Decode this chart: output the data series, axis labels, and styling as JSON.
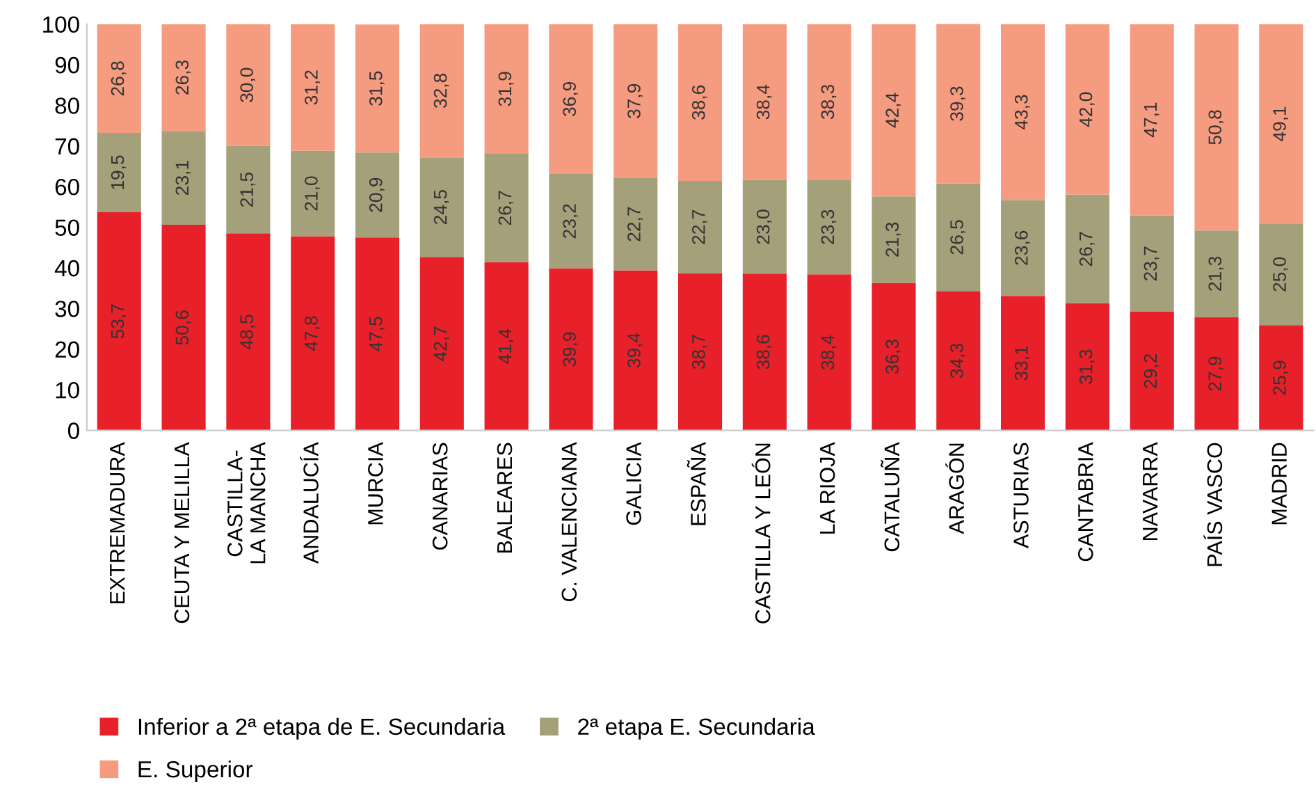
{
  "chart_data": {
    "type": "bar",
    "stacked": true,
    "categories": [
      "EXTREMADURA",
      "CEUTA Y MELILLA",
      "CASTILLA-\nLA MANCHA",
      "ANDALUCÍA",
      "MURCIA",
      "CANARIAS",
      "BALEARES",
      "C. VALENCIANA",
      "GALICIA",
      "ESPAÑA",
      "CASTILLA Y LEÓN",
      "LA RIOJA",
      "CATALUÑA",
      "ARAGÓN",
      "ASTURIAS",
      "CANTABRIA",
      "NAVARRA",
      "PAÍS VASCO",
      "MADRID"
    ],
    "series": [
      {
        "name": "Inferior a 2ª etapa de E. Secundaria",
        "color": "#e8202a",
        "values": [
          53.7,
          50.6,
          48.5,
          47.8,
          47.5,
          42.7,
          41.4,
          39.9,
          39.4,
          38.7,
          38.6,
          38.4,
          36.3,
          34.3,
          33.1,
          31.3,
          29.2,
          27.9,
          25.9
        ],
        "value_labels": [
          "53,7",
          "50,6",
          "48,5",
          "47,8",
          "47,5",
          "42,7",
          "41,4",
          "39,9",
          "39,4",
          "38,7",
          "38,6",
          "38,4",
          "36,3",
          "34,3",
          "33,1",
          "31,3",
          "29,2",
          "27,9",
          "25,9"
        ]
      },
      {
        "name": "2ª etapa E. Secundaria",
        "color": "#a3a07a",
        "values": [
          19.5,
          23.1,
          21.5,
          21.0,
          20.9,
          24.5,
          26.7,
          23.2,
          22.7,
          22.7,
          23.0,
          23.3,
          21.3,
          26.5,
          23.6,
          26.7,
          23.7,
          21.3,
          25.0
        ],
        "value_labels": [
          "19,5",
          "23,1",
          "21,5",
          "21,0",
          "20,9",
          "24,5",
          "26,7",
          "23,2",
          "22,7",
          "22,7",
          "23,0",
          "23,3",
          "21,3",
          "26,5",
          "23,6",
          "26,7",
          "23,7",
          "21,3",
          "25,0"
        ]
      },
      {
        "name": "E. Superior",
        "color": "#f59b80",
        "values": [
          26.8,
          26.3,
          30.0,
          31.2,
          31.5,
          32.8,
          31.9,
          36.9,
          37.9,
          38.6,
          38.4,
          38.3,
          42.4,
          39.3,
          43.3,
          42.0,
          47.1,
          50.8,
          49.1
        ],
        "value_labels": [
          "26,8",
          "26,3",
          "30,0",
          "31,2",
          "31,5",
          "32,8",
          "31,9",
          "36,9",
          "37,9",
          "38,6",
          "38,4",
          "38,3",
          "42,4",
          "39,3",
          "43,3",
          "42,0",
          "47,1",
          "50,8",
          "49,1"
        ]
      }
    ],
    "ylim": [
      0,
      100
    ],
    "yticks": [
      0,
      10,
      20,
      30,
      40,
      50,
      60,
      70,
      80,
      90,
      100
    ],
    "legend": "bottom",
    "grid": false
  }
}
